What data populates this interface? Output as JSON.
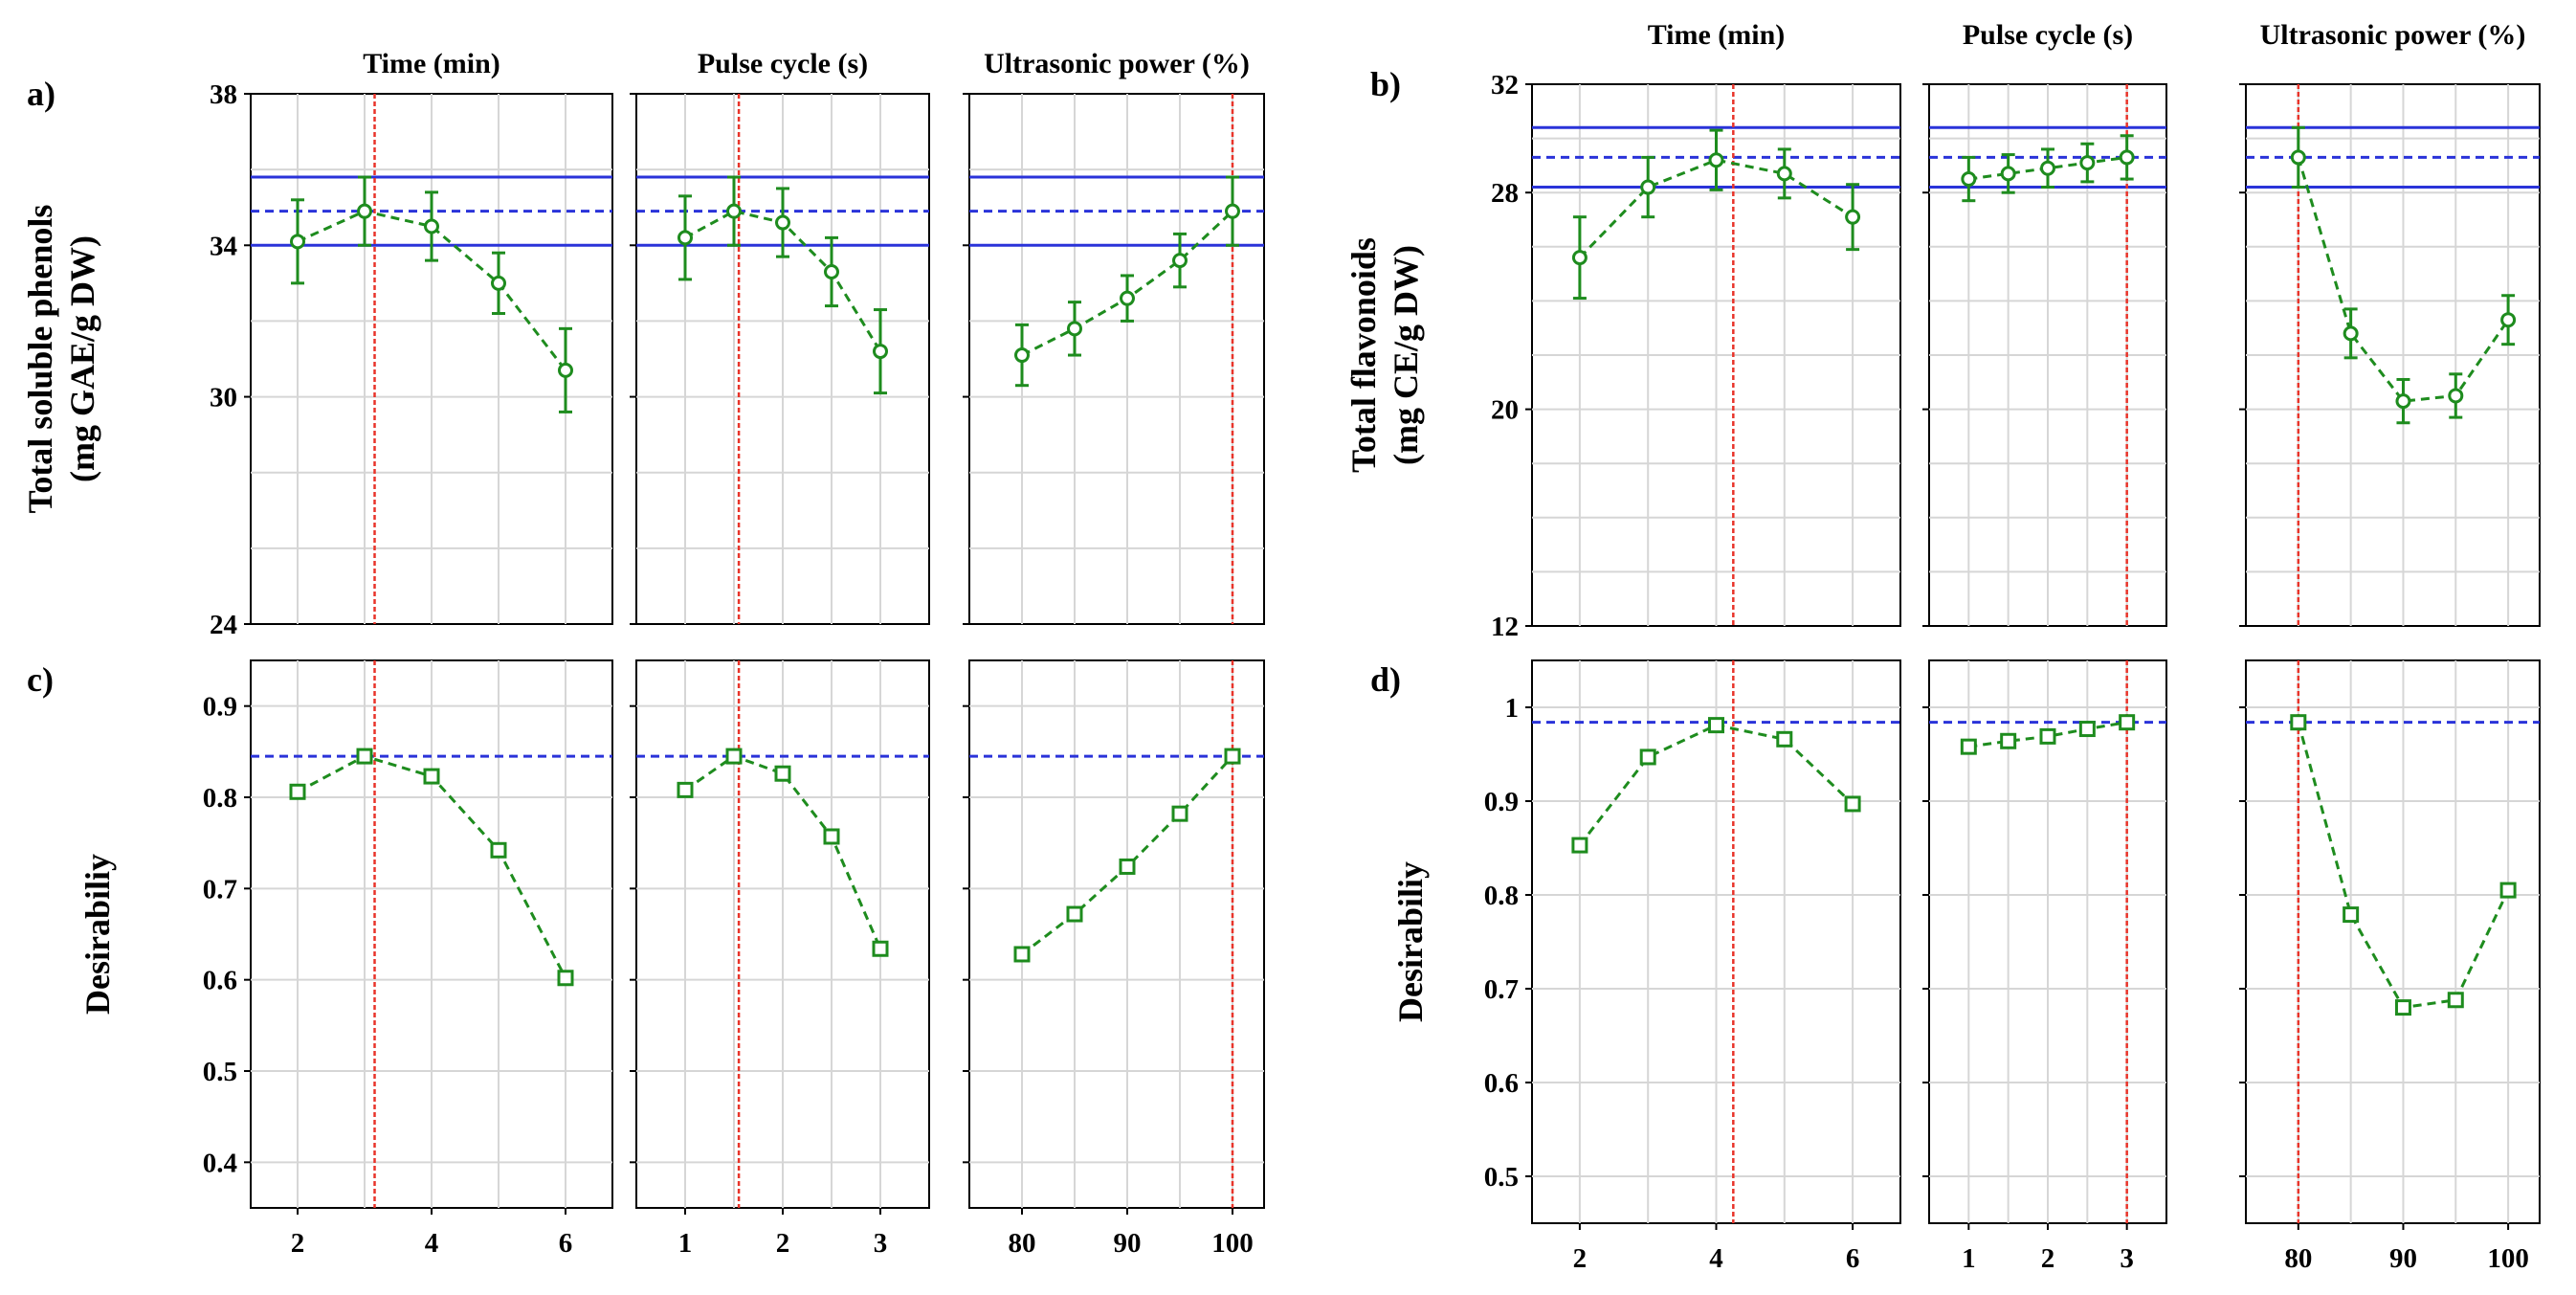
{
  "figure": {
    "panels": [
      {
        "id": "a",
        "label": "a)",
        "ylabel_lines": [
          "Total soluble phenols",
          "(mg GAE/g DW)"
        ]
      },
      {
        "id": "b",
        "label": "b)",
        "ylabel_lines": [
          "Total flavonoids",
          "(mg CE/g DW)"
        ]
      },
      {
        "id": "c",
        "label": "c)",
        "ylabel_lines": [
          "Desirabiliy"
        ]
      },
      {
        "id": "d",
        "label": "d)",
        "ylabel_lines": [
          "Desirabiliy"
        ]
      }
    ],
    "colors": {
      "curve": "#1e8c1e",
      "optimum": "#e8342a",
      "prediction": "#2a33d9",
      "grid": "#d6d6d6"
    }
  },
  "chart_data": [
    {
      "id": "a",
      "type": "line",
      "ylabel": "Total soluble phenols (mg GAE/g DW)",
      "ylim": [
        24,
        38
      ],
      "yticks": [
        24,
        30,
        34,
        38
      ],
      "prediction": 34.9,
      "ci": [
        34.0,
        35.8
      ],
      "subplots": [
        {
          "title": "Time (min)",
          "xlim": [
            1.3,
            6.7
          ],
          "xticks": [
            2,
            4,
            6
          ],
          "optimum": 3.15,
          "x": [
            2,
            3,
            4,
            5,
            6
          ],
          "y": [
            34.1,
            34.9,
            34.5,
            33.0,
            30.7
          ],
          "err": [
            1.1,
            0.9,
            0.9,
            0.8,
            1.1
          ]
        },
        {
          "title": "Pulse cycle (s)",
          "xlim": [
            0.5,
            3.5
          ],
          "xticks": [
            1,
            2,
            3
          ],
          "optimum": 1.55,
          "x": [
            1,
            1.5,
            2,
            2.5,
            3
          ],
          "y": [
            34.2,
            34.9,
            34.6,
            33.3,
            31.2
          ],
          "err": [
            1.1,
            0.9,
            0.9,
            0.9,
            1.1
          ]
        },
        {
          "title": "Ultrasonic power (%)",
          "xlim": [
            75,
            103
          ],
          "xticks": [
            80,
            90,
            100
          ],
          "optimum": 100,
          "x": [
            80,
            85,
            90,
            95,
            100
          ],
          "y": [
            31.1,
            31.8,
            32.6,
            33.6,
            34.9
          ],
          "err": [
            0.8,
            0.7,
            0.6,
            0.7,
            0.9
          ]
        }
      ]
    },
    {
      "id": "b",
      "type": "line",
      "ylabel": "Total flavonoids (mg CE/g DW)",
      "ylim": [
        12,
        32
      ],
      "yticks": [
        12,
        20,
        28,
        32
      ],
      "prediction": 29.3,
      "ci": [
        28.2,
        30.4
      ],
      "subplots": [
        {
          "title": "Time (min)",
          "xlim": [
            1.3,
            6.7
          ],
          "xticks": [
            2,
            4,
            6
          ],
          "optimum": 4.25,
          "x": [
            2,
            3,
            4,
            5,
            6
          ],
          "y": [
            25.6,
            28.2,
            29.2,
            28.7,
            27.1
          ],
          "err": [
            1.5,
            1.1,
            1.1,
            0.9,
            1.2
          ]
        },
        {
          "title": "Pulse cycle (s)",
          "xlim": [
            0.5,
            3.5
          ],
          "xticks": [
            1,
            2,
            3
          ],
          "optimum": 3,
          "x": [
            1,
            1.5,
            2,
            2.5,
            3
          ],
          "y": [
            28.5,
            28.7,
            28.9,
            29.1,
            29.3
          ],
          "err": [
            0.8,
            0.7,
            0.7,
            0.7,
            0.8
          ]
        },
        {
          "title": "Ultrasonic power (%)",
          "xlim": [
            75,
            103
          ],
          "xticks": [
            80,
            90,
            100
          ],
          "optimum": 80,
          "x": [
            80,
            85,
            90,
            95,
            100
          ],
          "y": [
            29.3,
            22.8,
            20.3,
            20.5,
            23.3
          ],
          "err": [
            1.1,
            0.9,
            0.8,
            0.8,
            0.9
          ]
        }
      ]
    },
    {
      "id": "c",
      "type": "line",
      "ylabel": "Desirabiliy",
      "ylim": [
        0.35,
        0.95
      ],
      "yticks": [
        0.4,
        0.5,
        0.6,
        0.7,
        0.8,
        0.9
      ],
      "prediction": 0.845,
      "subplots": [
        {
          "title": "Time (min)",
          "xlim": [
            1.3,
            6.7
          ],
          "xticks": [
            2,
            4,
            6
          ],
          "optimum": 3.15,
          "x": [
            2,
            3,
            4,
            5,
            6
          ],
          "y": [
            0.806,
            0.845,
            0.823,
            0.742,
            0.602
          ]
        },
        {
          "title": "Pulse cycle (s)",
          "xlim": [
            0.5,
            3.5
          ],
          "xticks": [
            1,
            2,
            3
          ],
          "optimum": 1.55,
          "x": [
            1,
            1.5,
            2,
            2.5,
            3
          ],
          "y": [
            0.808,
            0.845,
            0.826,
            0.757,
            0.634
          ]
        },
        {
          "title": "Ultrasonic power (%)",
          "xlim": [
            75,
            103
          ],
          "xticks": [
            80,
            90,
            100
          ],
          "optimum": 100,
          "x": [
            80,
            85,
            90,
            95,
            100
          ],
          "y": [
            0.628,
            0.672,
            0.724,
            0.782,
            0.845
          ]
        }
      ]
    },
    {
      "id": "d",
      "type": "line",
      "ylabel": "Desirabiliy",
      "ylim": [
        0.45,
        1.05
      ],
      "yticks": [
        0.5,
        0.6,
        0.7,
        0.8,
        0.9,
        1
      ],
      "prediction": 0.984,
      "subplots": [
        {
          "title": "Time (min)",
          "xlim": [
            1.3,
            6.7
          ],
          "xticks": [
            2,
            4,
            6
          ],
          "optimum": 4.25,
          "x": [
            2,
            3,
            4,
            5,
            6
          ],
          "y": [
            0.853,
            0.947,
            0.981,
            0.966,
            0.897
          ]
        },
        {
          "title": "Pulse cycle (s)",
          "xlim": [
            0.5,
            3.5
          ],
          "xticks": [
            1,
            2,
            3
          ],
          "optimum": 3,
          "x": [
            1,
            1.5,
            2,
            2.5,
            3
          ],
          "y": [
            0.958,
            0.964,
            0.969,
            0.977,
            0.984
          ]
        },
        {
          "title": "Ultrasonic power (%)",
          "xlim": [
            75,
            103
          ],
          "xticks": [
            80,
            90,
            100
          ],
          "optimum": 80,
          "x": [
            80,
            85,
            90,
            95,
            100
          ],
          "y": [
            0.984,
            0.779,
            0.68,
            0.688,
            0.805
          ]
        }
      ]
    }
  ]
}
